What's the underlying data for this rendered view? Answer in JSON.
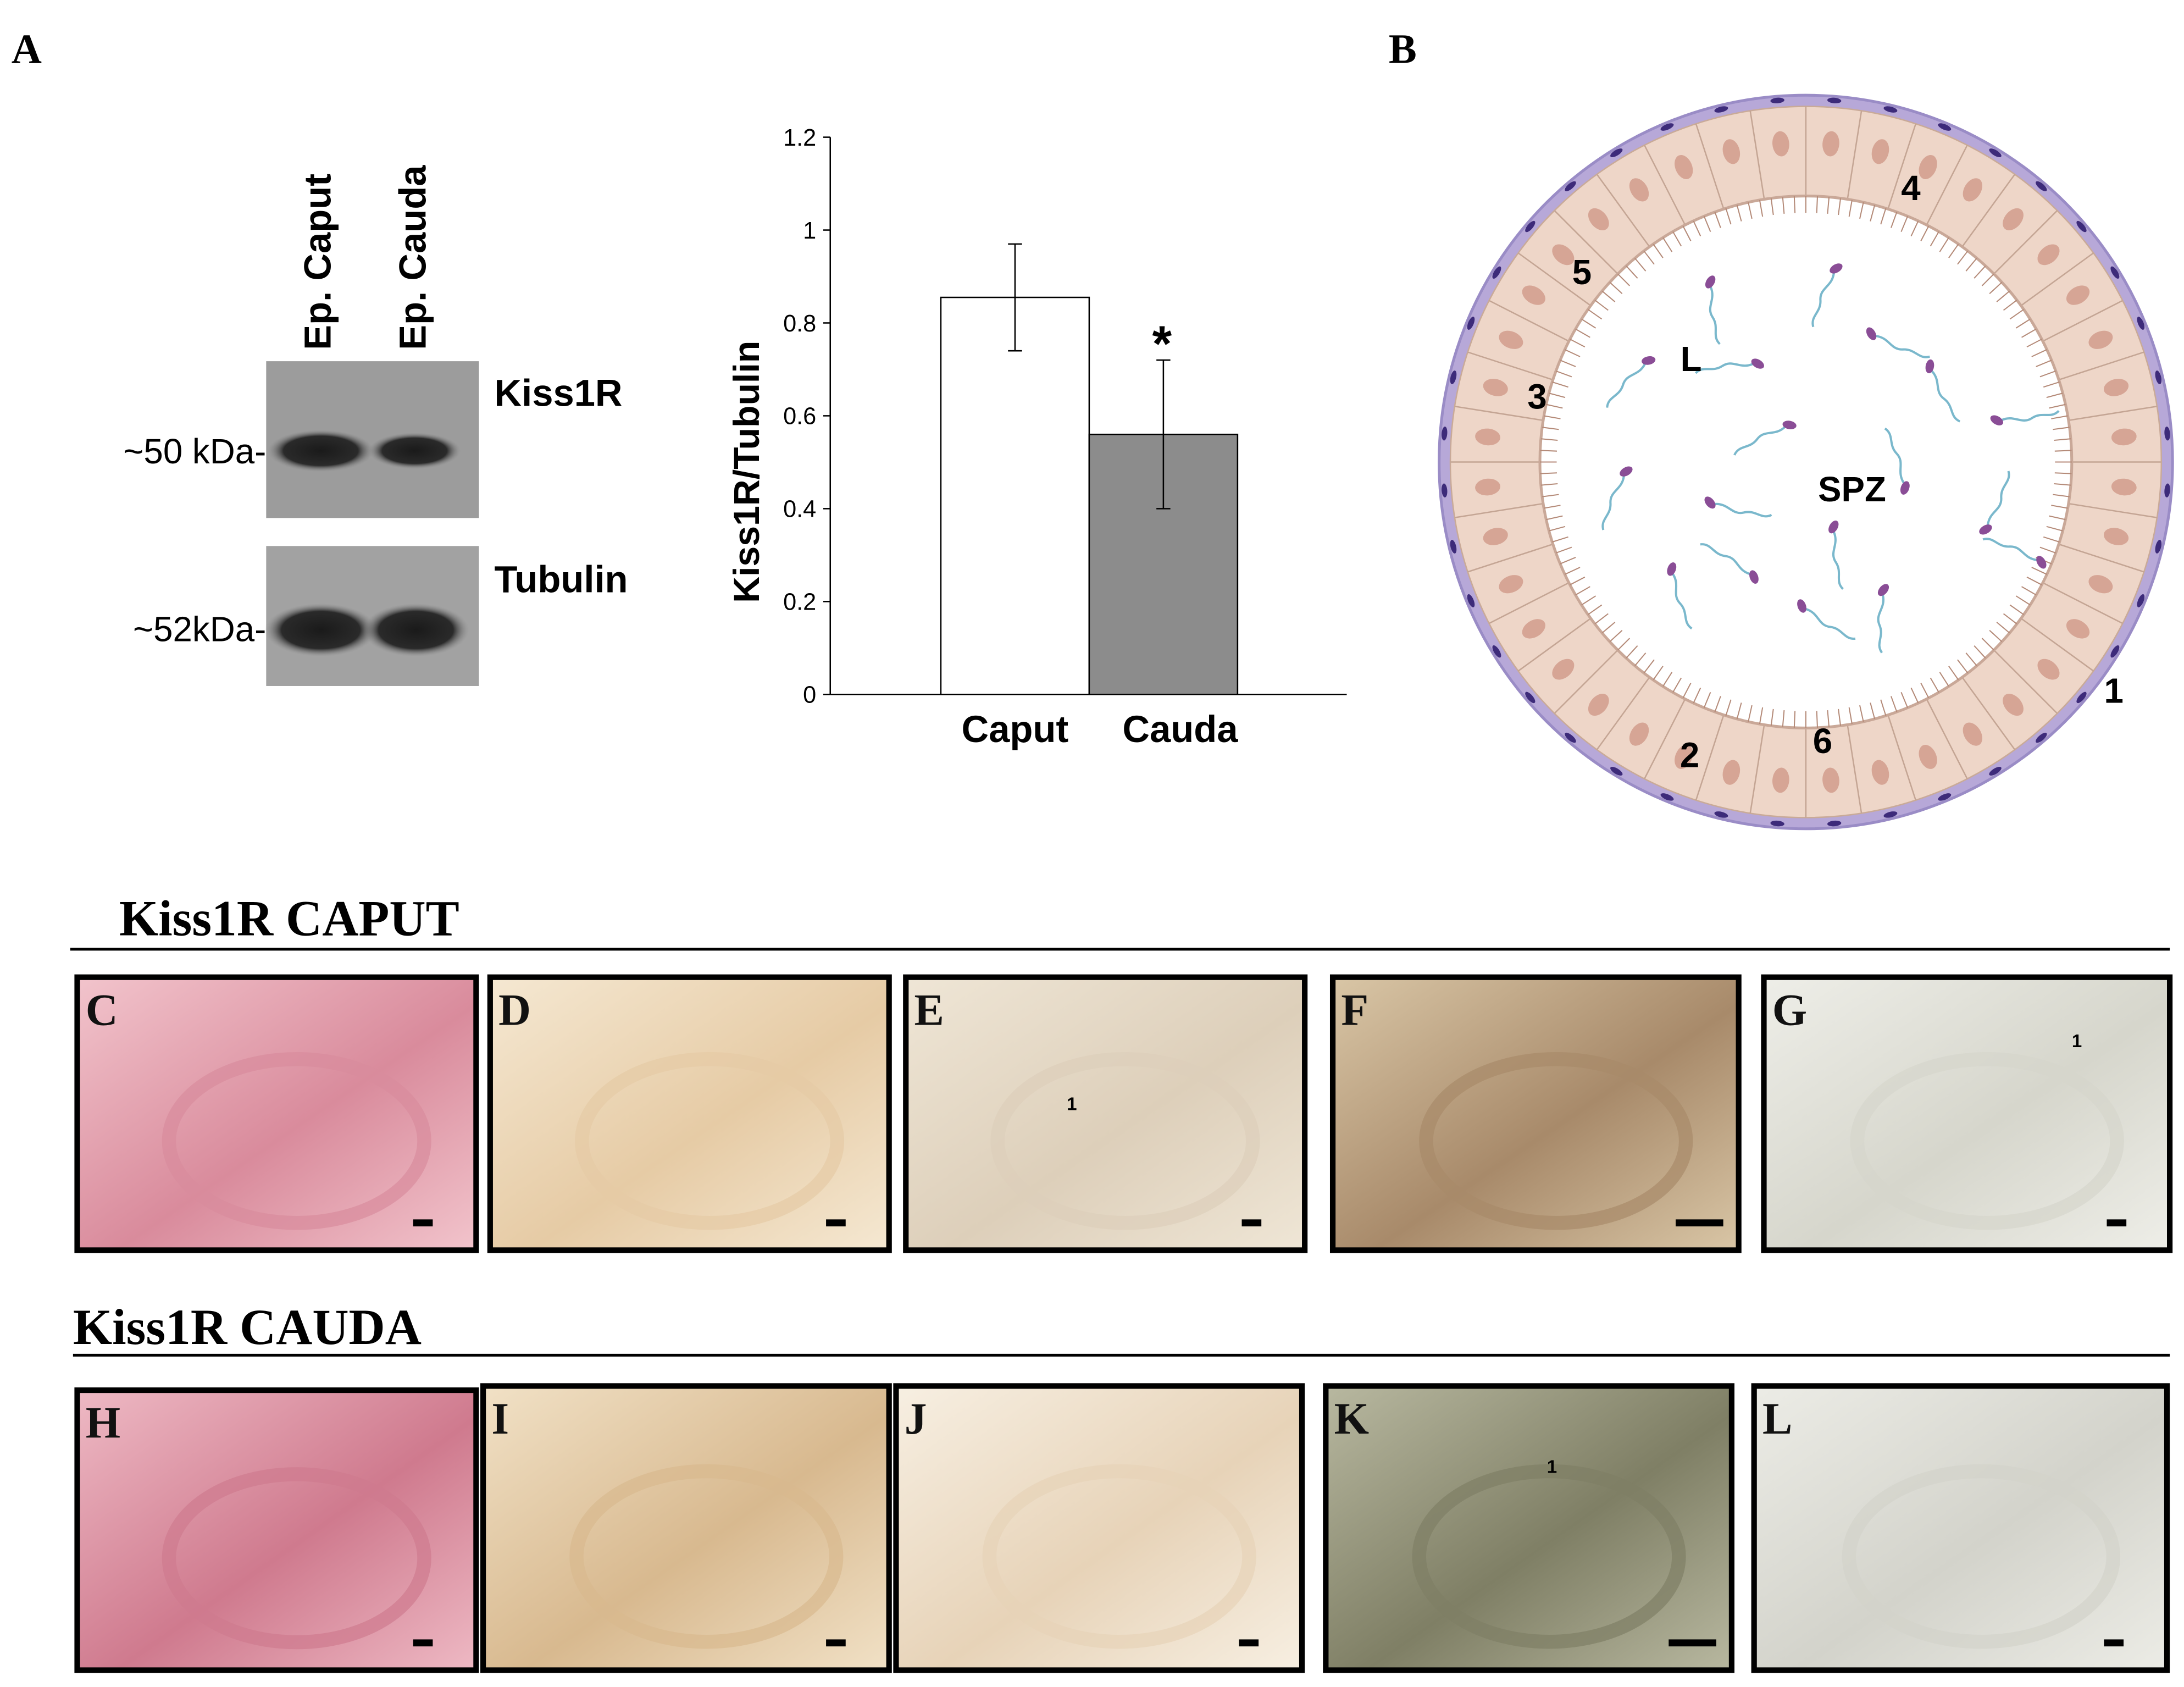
{
  "panel_labels": {
    "a": "A",
    "b": "B"
  },
  "blot": {
    "lanes": [
      "Ep. Caput",
      "Ep. Cauda"
    ],
    "proteins": [
      "Kiss1R",
      "Tubulin"
    ],
    "sizes": [
      "~50 kDa-",
      "~52kDa-"
    ]
  },
  "chart_data": {
    "type": "bar",
    "ylabel": "Kiss1R/Tubulin",
    "categories": [
      "Caput",
      "Cauda"
    ],
    "values": [
      0.855,
      0.56
    ],
    "errors": [
      0.115,
      0.16
    ],
    "colors": [
      "#ffffff",
      "#8c8c8c"
    ],
    "annotation": "*",
    "ylim": [
      0,
      1.2
    ],
    "yticks": [
      0,
      0.2,
      0.4,
      0.6,
      0.8,
      1,
      1.2
    ]
  },
  "diagram": {
    "labels": [
      "L",
      "SPZ",
      "1",
      "2",
      "3",
      "4",
      "5",
      "6"
    ]
  },
  "sections": [
    {
      "title": "Kiss1R CAPUT",
      "panels": [
        {
          "letter": "C"
        },
        {
          "letter": "D"
        },
        {
          "letter": "E",
          "annotation": "1"
        },
        {
          "letter": "F"
        },
        {
          "letter": "G",
          "annotation": "1"
        }
      ]
    },
    {
      "title": "Kiss1R CAUDA",
      "panels": [
        {
          "letter": "H"
        },
        {
          "letter": "I"
        },
        {
          "letter": "J"
        },
        {
          "letter": "K",
          "annotation": "1"
        },
        {
          "letter": "L"
        }
      ]
    }
  ]
}
